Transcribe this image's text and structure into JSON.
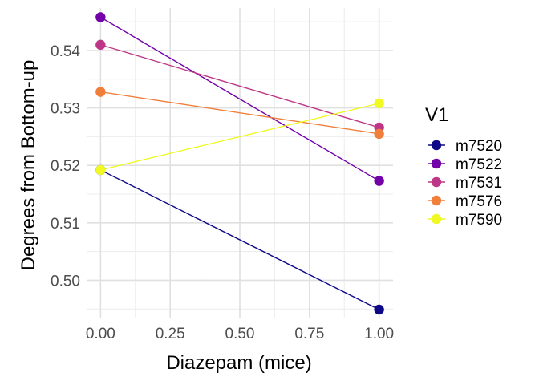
{
  "chart_data": {
    "type": "line",
    "xlabel": "Diazepam (mice)",
    "ylabel": "Degrees from Bottom-up",
    "xlim": [
      -0.05,
      1.05
    ],
    "ylim": [
      0.4935,
      0.5474
    ],
    "x_ticks": [
      0.0,
      0.25,
      0.5,
      0.75,
      1.0
    ],
    "x_tick_labels": [
      "0.00",
      "0.25",
      "0.50",
      "0.75",
      "1.00"
    ],
    "y_ticks": [
      0.5,
      0.51,
      0.52,
      0.53,
      0.54
    ],
    "y_tick_labels": [
      "0.50",
      "0.51",
      "0.52",
      "0.53",
      "0.54"
    ],
    "grid": true,
    "legend": {
      "title": "V1",
      "position": "right"
    },
    "series": [
      {
        "name": "m7520",
        "color": "#0d0887",
        "x": [
          0,
          1
        ],
        "y": [
          0.5192,
          0.4949
        ]
      },
      {
        "name": "m7522",
        "color": "#7201a8",
        "x": [
          0,
          1
        ],
        "y": [
          0.5458,
          0.5173
        ]
      },
      {
        "name": "m7531",
        "color": "#bd3786",
        "x": [
          0,
          1
        ],
        "y": [
          0.541,
          0.5266
        ]
      },
      {
        "name": "m7576",
        "color": "#f07f3c",
        "x": [
          0,
          1
        ],
        "y": [
          0.5328,
          0.5255
        ]
      },
      {
        "name": "m7590",
        "color": "#f0f921",
        "x": [
          0,
          1
        ],
        "y": [
          0.5192,
          0.5308
        ]
      }
    ]
  }
}
